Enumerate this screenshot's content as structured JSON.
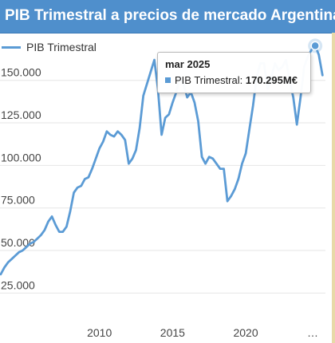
{
  "title": "PIB Trimestral a precios de mercado Argentina",
  "legend": {
    "series_name": "PIB Trimestral"
  },
  "tooltip": {
    "date": "mar 2025",
    "series_label": "PIB Trimestral:",
    "value": "170.295M€"
  },
  "colors": {
    "title_bg": "#4f8fcc",
    "line": "#5b9bd5",
    "grid": "#e6e6e6"
  },
  "chart_data": {
    "type": "line",
    "title": "PIB Trimestral a precios de mercado Argentina",
    "xlabel": "",
    "ylabel": "",
    "y_ticks": [
      25000,
      50000,
      75000,
      100000,
      125000,
      150000
    ],
    "y_tick_labels": [
      "25.000",
      "50.000",
      "75.000",
      "100.000",
      "125.000",
      "150.000"
    ],
    "x_ticks": [
      2010,
      2015,
      2020
    ],
    "x_tick_labels": [
      "2010",
      "2015",
      "2020"
    ],
    "x_end_label": "…",
    "xlim": [
      2003.2,
      2025.45
    ],
    "ylim": [
      5000,
      178000
    ],
    "grid": true,
    "legend_position": "top-left",
    "series": [
      {
        "name": "PIB Trimestral",
        "x": [
          2003.25,
          2003.5,
          2003.75,
          2004.0,
          2004.25,
          2004.5,
          2004.75,
          2005.0,
          2005.25,
          2005.5,
          2005.75,
          2006.0,
          2006.25,
          2006.5,
          2006.75,
          2007.0,
          2007.25,
          2007.5,
          2007.75,
          2008.0,
          2008.25,
          2008.5,
          2008.75,
          2009.0,
          2009.25,
          2009.5,
          2009.75,
          2010.0,
          2010.25,
          2010.5,
          2010.75,
          2011.0,
          2011.25,
          2011.5,
          2011.75,
          2012.0,
          2012.25,
          2012.5,
          2012.75,
          2013.0,
          2013.25,
          2013.5,
          2013.75,
          2014.0,
          2014.25,
          2014.5,
          2014.75,
          2015.0,
          2015.25,
          2015.5,
          2015.75,
          2016.0,
          2016.25,
          2016.5,
          2016.75,
          2017.0,
          2017.25,
          2017.5,
          2017.75,
          2018.0,
          2018.25,
          2018.5,
          2018.75,
          2019.0,
          2019.25,
          2019.5,
          2019.75,
          2020.0,
          2020.25,
          2020.5,
          2020.75,
          2021.0,
          2021.25,
          2021.5,
          2021.75,
          2022.0,
          2022.25,
          2022.5,
          2022.75,
          2023.0,
          2023.25,
          2023.5,
          2023.75,
          2024.0,
          2024.25,
          2024.5,
          2024.75,
          2025.0,
          2025.25
        ],
        "values": [
          36000,
          40000,
          43000,
          45000,
          47000,
          49000,
          50000,
          52000,
          54000,
          55000,
          57000,
          59000,
          62000,
          67000,
          70000,
          65000,
          61000,
          61000,
          64000,
          73000,
          84000,
          87000,
          88000,
          92000,
          93000,
          98000,
          104000,
          110000,
          114000,
          120000,
          118000,
          117000,
          120000,
          118000,
          115000,
          101000,
          104000,
          109000,
          122000,
          141000,
          148000,
          155000,
          162000,
          145000,
          118000,
          128000,
          130000,
          137000,
          143000,
          152000,
          148000,
          140000,
          143000,
          137000,
          126000,
          105000,
          101000,
          105000,
          104000,
          101000,
          98000,
          98000,
          79000,
          82000,
          86000,
          92000,
          101000,
          107000,
          121000,
          135000,
          152000,
          160000,
          160000,
          145000,
          152000,
          160000,
          156000,
          158000,
          162000,
          150000,
          140000,
          124000,
          140000,
          158000,
          164000,
          168000,
          170295,
          165000,
          153000
        ]
      }
    ]
  }
}
